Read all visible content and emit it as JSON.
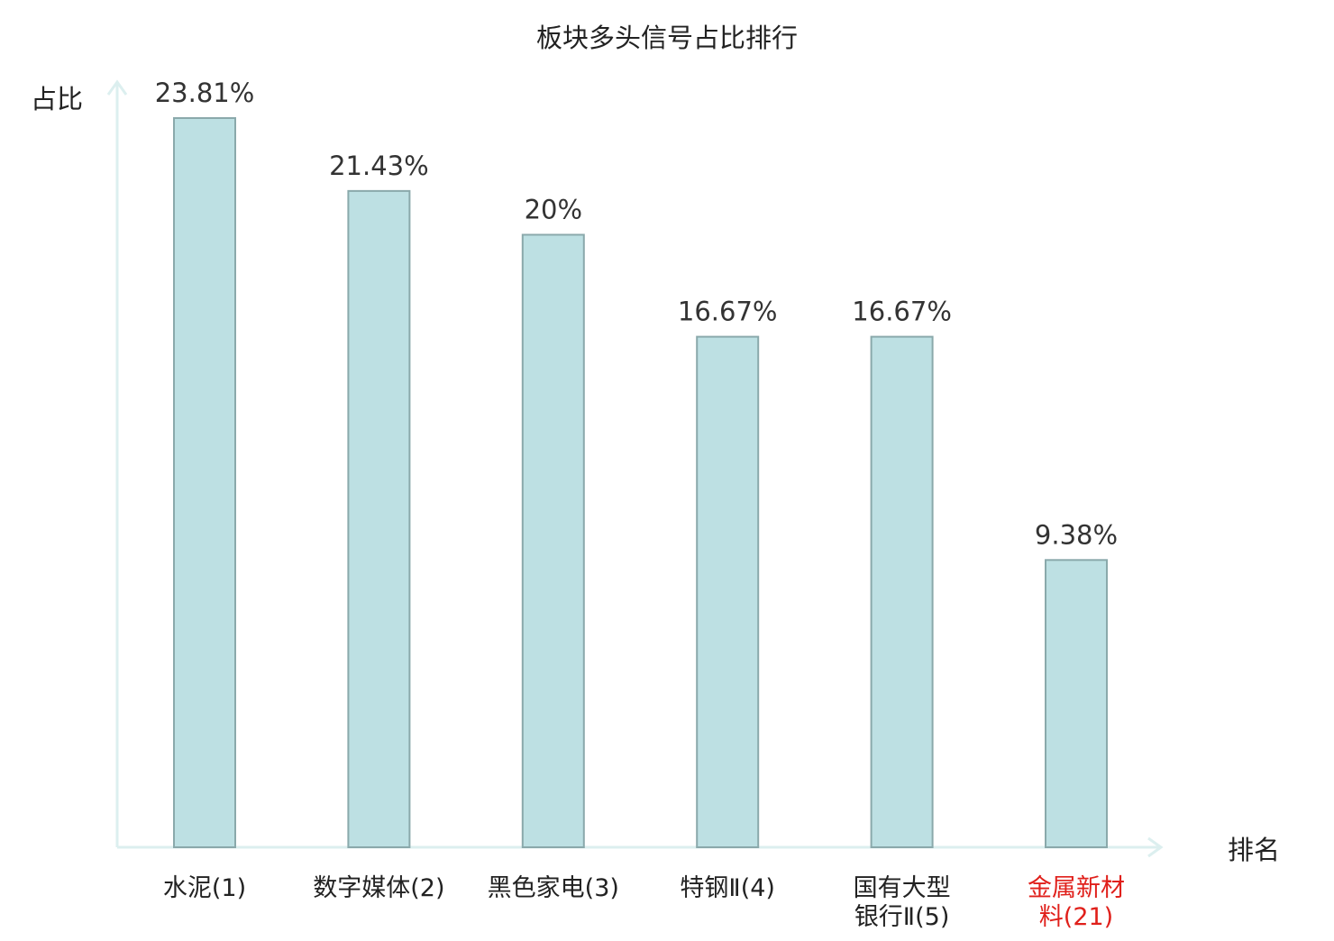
{
  "chart_data": {
    "type": "bar",
    "title": "板块多头信号占比排行",
    "ylabel": "占比",
    "xlabel": "排名",
    "categories": [
      "水泥(1)",
      "数字媒体(2)",
      "黑色家电(3)",
      "特钢Ⅱ(4)",
      "国有大型银行Ⅱ(5)",
      "金属新材料(21)"
    ],
    "category_lines": [
      [
        "水泥(1)"
      ],
      [
        "数字媒体(2)"
      ],
      [
        "黑色家电(3)"
      ],
      [
        "特钢Ⅱ(4)"
      ],
      [
        "国有大型",
        "银行Ⅱ(5)"
      ],
      [
        "金属新材",
        "料(21)"
      ]
    ],
    "values": [
      23.81,
      21.43,
      20,
      16.67,
      16.67,
      9.38
    ],
    "value_labels": [
      "23.81%",
      "21.43%",
      "20%",
      "16.67%",
      "16.67%",
      "9.38%"
    ],
    "highlight_index": 5,
    "ylim": [
      0,
      25
    ],
    "grid": false,
    "legend": "none"
  },
  "colors": {
    "bar_fill": "#bde0e3",
    "bar_stroke": "#8aa9ab",
    "axis": "#dcefef",
    "text": "#222222",
    "value_text": "#333333",
    "highlight": "#e0201b"
  }
}
